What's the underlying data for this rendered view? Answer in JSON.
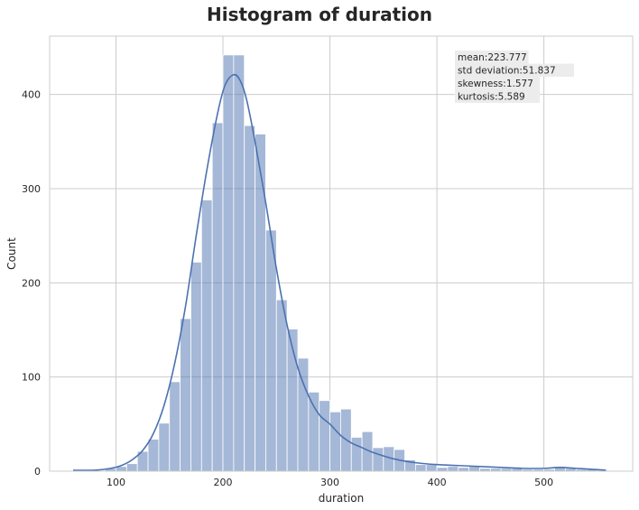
{
  "chart_data": {
    "type": "histogram",
    "title": "Histogram of duration",
    "xlabel": "duration",
    "ylabel": "Count",
    "xlim": [
      38,
      583
    ],
    "ylim": [
      0,
      462
    ],
    "x_ticks": [
      100,
      200,
      300,
      400,
      500
    ],
    "y_ticks": [
      0,
      100,
      200,
      300,
      400
    ],
    "grid": true,
    "bar_color": "#4c72b0",
    "bar_fill_opacity": 0.5,
    "kde_color": "#4c72b0",
    "bin_start": 60,
    "bin_width": 10,
    "values": [
      0,
      0,
      0,
      3,
      5,
      8,
      21,
      34,
      51,
      95,
      162,
      222,
      288,
      370,
      442,
      442,
      367,
      358,
      256,
      182,
      151,
      120,
      84,
      75,
      63,
      66,
      36,
      42,
      25,
      26,
      23,
      12,
      7,
      7,
      4,
      5,
      4,
      5,
      3,
      3,
      3,
      3,
      2,
      2,
      2,
      5,
      3,
      2,
      2,
      1
    ],
    "kde": {
      "x": [
        60,
        80,
        95,
        105,
        115,
        125,
        135,
        145,
        155,
        165,
        175,
        185,
        195,
        202,
        210,
        216,
        222,
        230,
        240,
        250,
        260,
        270,
        280,
        290,
        300,
        310,
        320,
        330,
        340,
        360,
        380,
        400,
        420,
        440,
        460,
        480,
        500,
        515,
        530,
        545,
        558
      ],
      "y": [
        1,
        1,
        3,
        6,
        12,
        22,
        40,
        70,
        115,
        175,
        250,
        320,
        380,
        410,
        421,
        415,
        395,
        350,
        285,
        215,
        155,
        110,
        80,
        60,
        50,
        38,
        30,
        25,
        20,
        13,
        9,
        7,
        6,
        5,
        4,
        3,
        3,
        4,
        3,
        2,
        1
      ]
    },
    "stats_box": [
      "mean:223.777",
      "std deviation:51.837",
      "skewness:1.577",
      "kurtosis:5.589"
    ]
  }
}
